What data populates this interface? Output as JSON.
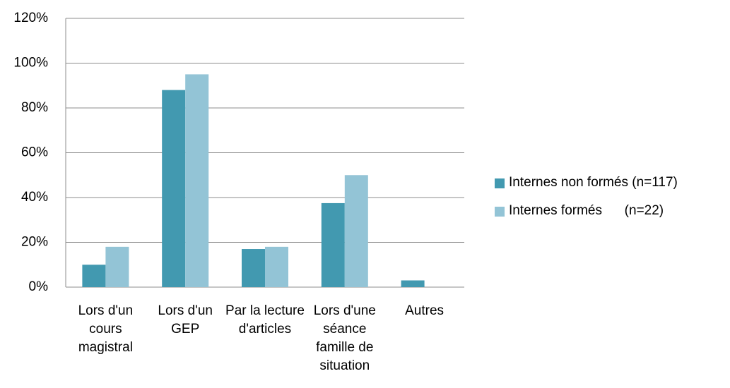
{
  "chart_data": {
    "type": "bar",
    "categories": [
      "Lors d'un cours magistral",
      "Lors d'un GEP",
      "Par la lecture d'articles",
      "Lors d'une séance famille de situation",
      "Autres"
    ],
    "series": [
      {
        "name": "Internes non formés (n=117)",
        "color": "#4299b0",
        "values": [
          10,
          88,
          17,
          37.5,
          3
        ]
      },
      {
        "name": "Internes formés      (n=22)",
        "color": "#93c4d6",
        "values": [
          18,
          95,
          18,
          50,
          0
        ]
      }
    ],
    "ylim": [
      0,
      120
    ],
    "yticks": [
      {
        "value": 0,
        "label": "0%"
      },
      {
        "value": 20,
        "label": "20%"
      },
      {
        "value": 40,
        "label": "40%"
      },
      {
        "value": 60,
        "label": "60%"
      },
      {
        "value": 80,
        "label": "80%"
      },
      {
        "value": 100,
        "label": "100%"
      },
      {
        "value": 120,
        "label": "120%"
      }
    ],
    "grid": true,
    "legend": "right"
  }
}
